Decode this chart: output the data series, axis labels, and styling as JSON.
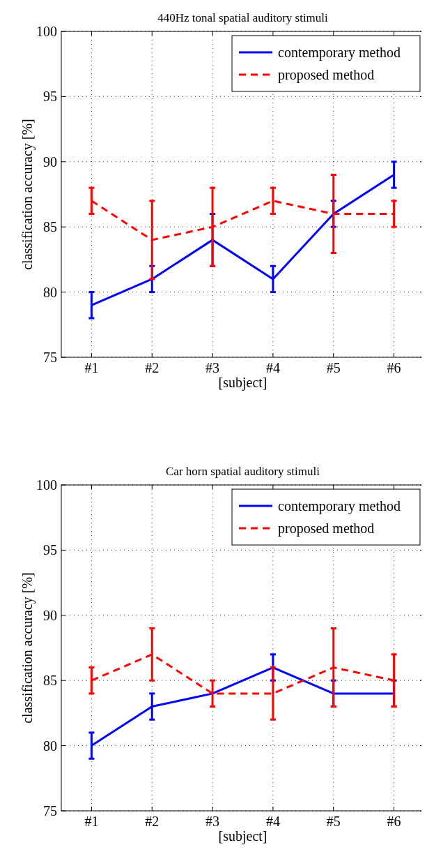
{
  "chart_data": [
    {
      "type": "line",
      "title": "440Hz tonal spatial auditory stimuli",
      "xlabel": "[subject]",
      "ylabel": "classification accuracy [%]",
      "categories": [
        "#1",
        "#2",
        "#3",
        "#4",
        "#5",
        "#6"
      ],
      "ylim": [
        75,
        100
      ],
      "yticks": [
        75,
        80,
        85,
        90,
        95,
        100
      ],
      "grid": true,
      "legend": "top right",
      "series": [
        {
          "name": "contemporary method",
          "color": "#0000ff",
          "line_style": "solid",
          "values": [
            79,
            81,
            84,
            81,
            86,
            89
          ],
          "errors": [
            1,
            1,
            2,
            1,
            1,
            1
          ]
        },
        {
          "name": "proposed method",
          "color": "#ff0000",
          "line_style": "dashed",
          "values": [
            87,
            84,
            85,
            87,
            86,
            86
          ],
          "errors": [
            1,
            [
              81,
              87
            ],
            [
              82,
              88
            ],
            1,
            [
              83,
              89
            ],
            1
          ]
        }
      ]
    },
    {
      "type": "line",
      "title": "Car horn spatial auditory stimuli",
      "xlabel": "[subject]",
      "ylabel": "classification accuracy [%]",
      "categories": [
        "#1",
        "#2",
        "#3",
        "#4",
        "#5",
        "#6"
      ],
      "ylim": [
        75,
        100
      ],
      "yticks": [
        75,
        80,
        85,
        90,
        95,
        100
      ],
      "grid": true,
      "legend": "top right",
      "series": [
        {
          "name": "contemporary method",
          "color": "#0000ff",
          "line_style": "solid",
          "values": [
            80,
            83,
            84,
            86,
            84,
            84
          ],
          "errors": [
            1,
            1,
            null,
            1,
            1,
            1
          ]
        },
        {
          "name": "proposed method",
          "color": "#ff0000",
          "line_style": "dashed",
          "values": [
            85,
            87,
            84,
            84,
            86,
            85
          ],
          "errors": [
            1,
            2,
            1,
            2,
            3,
            2
          ]
        }
      ]
    }
  ]
}
